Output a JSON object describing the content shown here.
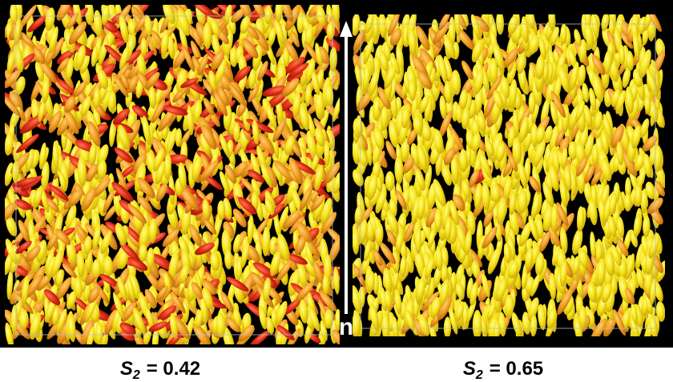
{
  "panels": [
    {
      "label": {
        "symbol": "S",
        "subscript": "2",
        "value": "= 0.42"
      }
    },
    {
      "label": {
        "symbol": "S",
        "subscript": "2",
        "value": "= 0.65"
      }
    }
  ],
  "director": {
    "label": "n"
  }
}
